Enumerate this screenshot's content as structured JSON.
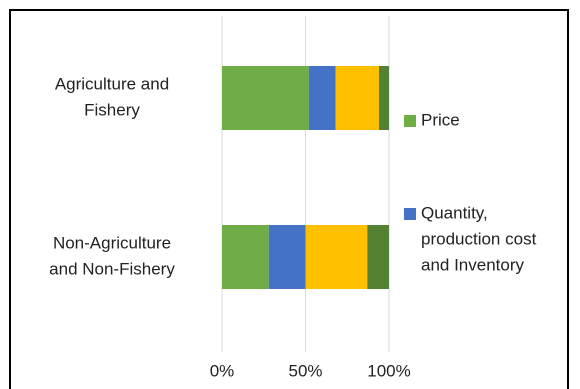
{
  "chart_data": {
    "type": "bar",
    "orientation": "horizontal",
    "stacked": "percent",
    "title": "",
    "xlabel": "",
    "ylabel": "",
    "xlim": [
      0,
      100
    ],
    "grid": true,
    "legend_position": "right",
    "categories": [
      "Agriculture and Fishery",
      "Non-Agriculture and Non-Fishery"
    ],
    "category_lines": [
      [
        "Agriculture and",
        "Fishery"
      ],
      [
        "Non-Agriculture",
        "and Non-Fishery"
      ]
    ],
    "x_ticks": [
      "0%",
      "50%",
      "100%"
    ],
    "series": [
      {
        "name": "Price",
        "name_lines": [
          "Price"
        ],
        "color": "#70AD47",
        "values": [
          52,
          28
        ]
      },
      {
        "name": "Quantity, production cost and Inventory",
        "name_lines": [
          "Quantity,",
          "production cost",
          "and Inventory"
        ],
        "color": "#4472C4",
        "values": [
          16,
          22
        ]
      },
      {
        "name": "",
        "name_lines": [],
        "color": "#FFC000",
        "values": [
          26,
          37
        ]
      },
      {
        "name": "",
        "name_lines": [],
        "color": "#548235",
        "values": [
          6,
          13
        ]
      }
    ]
  }
}
